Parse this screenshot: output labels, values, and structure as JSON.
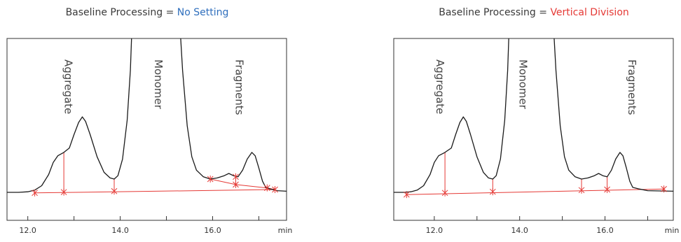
{
  "chart_data": [
    {
      "type": "line",
      "title_prefix": "Baseline Processing = ",
      "title_value": "No Setting",
      "title_value_color": "#2f6fbd",
      "xlabel": "min",
      "xlim": [
        11.55,
        17.6
      ],
      "ylim": [
        -0.08,
        1.45
      ],
      "x_ticks": [
        12.0,
        13.0,
        14.0,
        15.0,
        16.0,
        17.0
      ],
      "x_tick_labels": [
        "12.0",
        "",
        "14.0",
        "",
        "16.0",
        ""
      ],
      "peak_labels": [
        {
          "text": "Aggregate",
          "x": 12.8
        },
        {
          "text": "Monomer",
          "x": 14.75
        },
        {
          "text": "Fragments",
          "x": 16.5
        }
      ],
      "trace_color": "#1a1a1a",
      "integration_color": "#e53935",
      "trace": [
        [
          11.55,
          0.0
        ],
        [
          11.8,
          0.0
        ],
        [
          12.0,
          0.005
        ],
        [
          12.15,
          0.02
        ],
        [
          12.3,
          0.06
        ],
        [
          12.45,
          0.16
        ],
        [
          12.55,
          0.27
        ],
        [
          12.65,
          0.33
        ],
        [
          12.78,
          0.36
        ],
        [
          12.9,
          0.4
        ],
        [
          13.0,
          0.52
        ],
        [
          13.1,
          0.63
        ],
        [
          13.18,
          0.68
        ],
        [
          13.25,
          0.64
        ],
        [
          13.35,
          0.52
        ],
        [
          13.5,
          0.32
        ],
        [
          13.65,
          0.18
        ],
        [
          13.78,
          0.13
        ],
        [
          13.87,
          0.12
        ],
        [
          13.95,
          0.15
        ],
        [
          14.05,
          0.3
        ],
        [
          14.15,
          0.65
        ],
        [
          14.22,
          1.1
        ],
        [
          14.25,
          1.45
        ],
        [
          15.3,
          1.45
        ],
        [
          15.35,
          1.1
        ],
        [
          15.45,
          0.6
        ],
        [
          15.55,
          0.32
        ],
        [
          15.65,
          0.2
        ],
        [
          15.8,
          0.14
        ],
        [
          15.95,
          0.12
        ],
        [
          16.1,
          0.13
        ],
        [
          16.25,
          0.15
        ],
        [
          16.35,
          0.17
        ],
        [
          16.45,
          0.15
        ],
        [
          16.55,
          0.14
        ],
        [
          16.65,
          0.2
        ],
        [
          16.75,
          0.3
        ],
        [
          16.85,
          0.36
        ],
        [
          16.92,
          0.33
        ],
        [
          17.0,
          0.22
        ],
        [
          17.08,
          0.1
        ],
        [
          17.15,
          0.045
        ],
        [
          17.25,
          0.03
        ],
        [
          17.4,
          0.015
        ],
        [
          17.6,
          0.01
        ]
      ],
      "baseline_segments": [
        [
          [
            12.15,
            -0.005
          ],
          [
            17.35,
            0.025
          ]
        ],
        [
          [
            15.95,
            0.12
          ],
          [
            16.5,
            0.07
          ],
          [
            17.18,
            0.04
          ],
          [
            17.35,
            0.025
          ]
        ]
      ],
      "drop_lines": [
        [
          12.78,
          0.002,
          0.36
        ],
        [
          13.87,
          0.011,
          0.12
        ],
        [
          16.5,
          0.07,
          0.14
        ]
      ],
      "markers": [
        [
          12.15,
          -0.005
        ],
        [
          12.78,
          0.002
        ],
        [
          13.87,
          0.011
        ],
        [
          15.95,
          0.12
        ],
        [
          16.5,
          0.07
        ],
        [
          16.5,
          0.14
        ],
        [
          17.18,
          0.04
        ],
        [
          17.35,
          0.025
        ]
      ]
    },
    {
      "type": "line",
      "title_prefix": "Baseline Processing = ",
      "title_value": "Vertical Division",
      "title_value_color": "#e53935",
      "xlabel": "min",
      "xlim": [
        11.05,
        17.6
      ],
      "ylim": [
        -0.08,
        1.45
      ],
      "x_ticks": [
        12.0,
        13.0,
        14.0,
        15.0,
        16.0,
        17.0
      ],
      "x_tick_labels": [
        "12.0",
        "",
        "14.0",
        "",
        "16.0",
        ""
      ],
      "peak_labels": [
        {
          "text": "Aggregate",
          "x": 12.05
        },
        {
          "text": "Monomer",
          "x": 14.0
        },
        {
          "text": "Fragments",
          "x": 16.55
        }
      ],
      "trace_color": "#1a1a1a",
      "integration_color": "#e53935",
      "trace": [
        [
          11.05,
          0.0
        ],
        [
          11.3,
          0.0
        ],
        [
          11.45,
          0.005
        ],
        [
          11.6,
          0.02
        ],
        [
          11.75,
          0.06
        ],
        [
          11.9,
          0.16
        ],
        [
          12.0,
          0.27
        ],
        [
          12.1,
          0.33
        ],
        [
          12.25,
          0.36
        ],
        [
          12.4,
          0.4
        ],
        [
          12.5,
          0.52
        ],
        [
          12.6,
          0.63
        ],
        [
          12.68,
          0.68
        ],
        [
          12.75,
          0.64
        ],
        [
          12.85,
          0.52
        ],
        [
          13.0,
          0.32
        ],
        [
          13.15,
          0.18
        ],
        [
          13.27,
          0.13
        ],
        [
          13.37,
          0.12
        ],
        [
          13.45,
          0.15
        ],
        [
          13.55,
          0.3
        ],
        [
          13.65,
          0.65
        ],
        [
          13.72,
          1.1
        ],
        [
          13.75,
          1.45
        ],
        [
          14.8,
          1.45
        ],
        [
          14.85,
          1.1
        ],
        [
          14.95,
          0.6
        ],
        [
          15.05,
          0.32
        ],
        [
          15.15,
          0.2
        ],
        [
          15.3,
          0.14
        ],
        [
          15.45,
          0.12
        ],
        [
          15.6,
          0.13
        ],
        [
          15.75,
          0.15
        ],
        [
          15.85,
          0.17
        ],
        [
          15.95,
          0.15
        ],
        [
          16.05,
          0.14
        ],
        [
          16.15,
          0.2
        ],
        [
          16.25,
          0.3
        ],
        [
          16.35,
          0.36
        ],
        [
          16.42,
          0.33
        ],
        [
          16.5,
          0.22
        ],
        [
          16.58,
          0.1
        ],
        [
          16.65,
          0.045
        ],
        [
          16.8,
          0.03
        ],
        [
          17.0,
          0.015
        ],
        [
          17.6,
          0.01
        ]
      ],
      "baseline_segments": [
        [
          [
            11.35,
            -0.02
          ],
          [
            17.38,
            0.03
          ]
        ]
      ],
      "drop_lines": [
        [
          12.25,
          -0.005,
          0.36
        ],
        [
          13.37,
          0.005,
          0.12
        ],
        [
          15.45,
          0.02,
          0.12
        ],
        [
          16.05,
          0.025,
          0.14
        ]
      ],
      "markers": [
        [
          11.35,
          -0.02
        ],
        [
          12.25,
          -0.005
        ],
        [
          13.37,
          0.005
        ],
        [
          15.45,
          0.02
        ],
        [
          16.05,
          0.025
        ],
        [
          17.38,
          0.03
        ]
      ]
    }
  ]
}
